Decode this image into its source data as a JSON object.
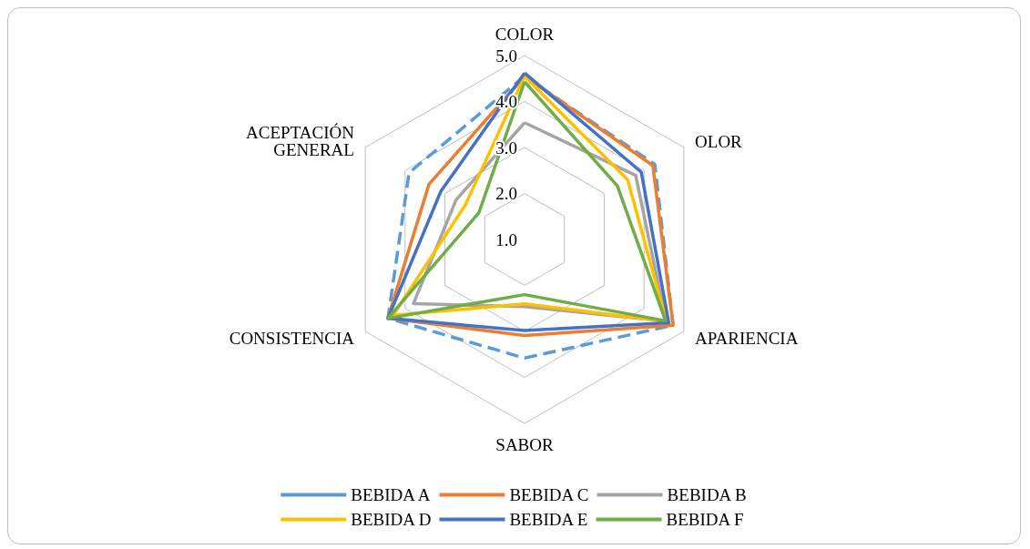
{
  "chart_data": {
    "type": "radar",
    "categories": [
      "COLOR",
      "OLOR",
      "APARIENCIA",
      "SABOR",
      "CONSISTENCIA",
      "ACEPTACIÓN GENERAL"
    ],
    "ylim": [
      1,
      5
    ],
    "yticks": [
      {
        "value": 1,
        "label": "1.0"
      },
      {
        "value": 2,
        "label": "2.0"
      },
      {
        "value": 3,
        "label": "3.0"
      },
      {
        "value": 4,
        "label": "4.0"
      },
      {
        "value": 5,
        "label": "5.0"
      }
    ],
    "legend": "bottom",
    "grid": true,
    "marker": "none",
    "series": [
      {
        "name": "BEBIDA A",
        "color": "#5b9bd5",
        "line_style": "dashed",
        "values": [
          4.55,
          4.27,
          4.73,
          3.58,
          4.43,
          3.9
        ]
      },
      {
        "name": "BEBIDA C",
        "color": "#ed7d31",
        "values": [
          4.55,
          4.22,
          4.73,
          3.09,
          4.43,
          3.4
        ]
      },
      {
        "name": "BEBIDA B",
        "color": "#a5a5a5",
        "values": [
          3.54,
          3.79,
          4.55,
          2.46,
          3.79,
          2.72
        ]
      },
      {
        "name": "BEBIDA D",
        "color": "#ffc000",
        "values": [
          4.55,
          3.59,
          4.56,
          2.4,
          4.3,
          2.49
        ]
      },
      {
        "name": "BEBIDA E",
        "color": "#4472c4",
        "values": [
          4.62,
          3.93,
          4.62,
          2.98,
          4.43,
          3.1
        ]
      },
      {
        "name": "BEBIDA F",
        "color": "#70ad47",
        "values": [
          4.43,
          3.33,
          4.54,
          2.2,
          4.43,
          2.15
        ]
      }
    ]
  }
}
